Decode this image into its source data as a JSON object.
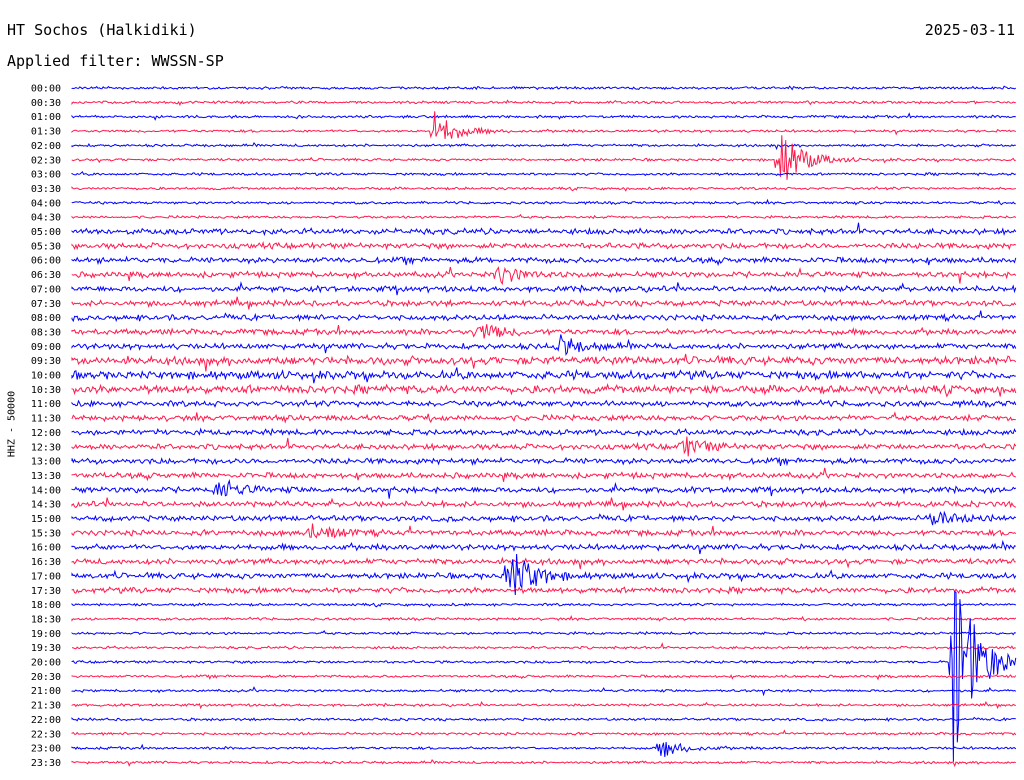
{
  "header": {
    "station": "HT Sochos (Halkidiki)",
    "date": "2025-03-11",
    "filter": "Applied filter: WWSSN-SP"
  },
  "chart_data": {
    "type": "line",
    "title": "HT Sochos (Halkidiki)",
    "ylabel": "HHZ - 50000",
    "xlabel": "",
    "rows": [
      "00:00",
      "00:30",
      "01:00",
      "01:30",
      "02:00",
      "02:30",
      "03:00",
      "03:30",
      "04:00",
      "04:30",
      "05:00",
      "05:30",
      "06:00",
      "06:30",
      "07:00",
      "07:30",
      "08:00",
      "08:30",
      "09:00",
      "09:30",
      "10:00",
      "10:30",
      "11:00",
      "11:30",
      "12:00",
      "12:30",
      "13:00",
      "13:30",
      "14:00",
      "14:30",
      "15:00",
      "15:30",
      "16:00",
      "16:30",
      "17:00",
      "17:30",
      "18:00",
      "18:30",
      "19:00",
      "19:30",
      "20:00",
      "20:30",
      "21:00",
      "21:30",
      "22:00",
      "22:30",
      "23:00",
      "23:30"
    ],
    "colors": {
      "even": "#0000ff",
      "odd": "#ff1a4d"
    },
    "notable_events": [
      {
        "row": "01:30",
        "minute": 11.5,
        "amplitude": "moderate"
      },
      {
        "row": "02:30",
        "minute": 22.5,
        "amplitude": "large"
      },
      {
        "row": "06:30",
        "minute": 13.5,
        "amplitude": "small"
      },
      {
        "row": "08:30",
        "minute": 12.9,
        "amplitude": "small"
      },
      {
        "row": "09:00",
        "minute": 15.5,
        "amplitude": "small"
      },
      {
        "row": "12:30",
        "minute": 19.4,
        "amplitude": "small"
      },
      {
        "row": "14:00",
        "minute": 4.6,
        "amplitude": "small"
      },
      {
        "row": "15:00",
        "minute": 27.3,
        "amplitude": "small"
      },
      {
        "row": "15:30",
        "minute": 7.6,
        "amplitude": "small"
      },
      {
        "row": "17:00",
        "minute": 13.9,
        "amplitude": "large"
      },
      {
        "row": "20:00",
        "minute": 28.0,
        "amplitude": "very large"
      },
      {
        "row": "23:00",
        "minute": 18.7,
        "amplitude": "small"
      }
    ]
  }
}
